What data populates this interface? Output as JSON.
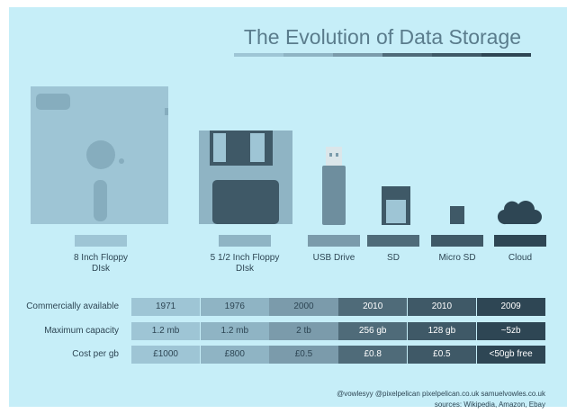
{
  "title": "The Evolution of Data Storage",
  "devices": [
    "8 Inch Floppy DIsk",
    "5 1/2 Inch Floppy DIsk",
    "USB Drive",
    "SD",
    "Micro SD",
    "Cloud"
  ],
  "column_colors": [
    "#9ec5d5",
    "#8fb4c4",
    "#7b9bab",
    "#4f6b79",
    "#3f5967",
    "#2e4654"
  ],
  "table": {
    "rows": [
      {
        "label": "Commercially available",
        "cells": [
          "1971",
          "1976",
          "2000",
          "2010",
          "2010",
          "2009"
        ]
      },
      {
        "label": "Maximum capacity",
        "cells": [
          "1.2 mb",
          "1.2 mb",
          "2 tb",
          "256 gb",
          "128 gb",
          "~5zb"
        ]
      },
      {
        "label": "Cost per gb",
        "cells": [
          "£1000",
          "£800",
          "£0.5",
          "£0.8",
          "£0.5",
          "<50gb free"
        ]
      }
    ]
  },
  "footer": {
    "credits": "@vowlesyy @pixelpelican pixelpelican.co.uk samuelvowles.co.uk",
    "sources": "sources: Wikipedia, Amazon, Ebay"
  }
}
